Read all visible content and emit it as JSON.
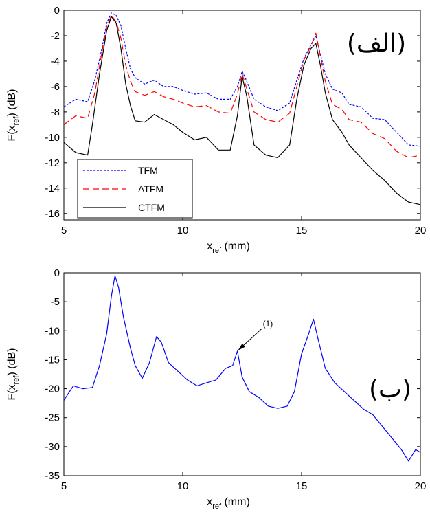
{
  "chart_data": [
    {
      "type": "line",
      "panel_label": "(الف)",
      "xlabel": "x_ref (mm)",
      "ylabel": "F(x_ref) (dB)",
      "xlim": [
        5,
        20
      ],
      "ylim": [
        -16.5,
        0
      ],
      "xticks": [
        5,
        10,
        15,
        20
      ],
      "yticks": [
        0,
        -2,
        -4,
        -6,
        -8,
        -10,
        -12,
        -14,
        -16
      ],
      "grid": false,
      "legend_position": "bottom-left",
      "series": [
        {
          "name": "TFM",
          "color": "#0000ff",
          "style": "dotted",
          "points": [
            [
              5,
              -7.6
            ],
            [
              5.5,
              -7.0
            ],
            [
              6,
              -7.2
            ],
            [
              6.3,
              -5.5
            ],
            [
              6.6,
              -3.0
            ],
            [
              6.8,
              -1.0
            ],
            [
              7.0,
              -0.2
            ],
            [
              7.2,
              -0.4
            ],
            [
              7.4,
              -1.2
            ],
            [
              7.6,
              -3.0
            ],
            [
              7.8,
              -4.6
            ],
            [
              8.0,
              -5.3
            ],
            [
              8.4,
              -5.8
            ],
            [
              8.8,
              -5.5
            ],
            [
              9.2,
              -6.0
            ],
            [
              9.6,
              -6.0
            ],
            [
              10.0,
              -6.3
            ],
            [
              10.5,
              -6.6
            ],
            [
              11.0,
              -6.5
            ],
            [
              11.5,
              -7.0
            ],
            [
              12.0,
              -7.0
            ],
            [
              12.3,
              -6.0
            ],
            [
              12.5,
              -4.8
            ],
            [
              12.7,
              -5.6
            ],
            [
              13.0,
              -7.0
            ],
            [
              13.5,
              -7.6
            ],
            [
              14.0,
              -7.9
            ],
            [
              14.5,
              -7.3
            ],
            [
              14.8,
              -5.5
            ],
            [
              15.1,
              -3.8
            ],
            [
              15.4,
              -2.7
            ],
            [
              15.6,
              -2.0
            ],
            [
              15.8,
              -3.5
            ],
            [
              16.0,
              -5.0
            ],
            [
              16.3,
              -6.2
            ],
            [
              16.7,
              -6.5
            ],
            [
              17.0,
              -7.4
            ],
            [
              17.5,
              -7.6
            ],
            [
              18.0,
              -8.5
            ],
            [
              18.5,
              -8.6
            ],
            [
              19.0,
              -9.6
            ],
            [
              19.5,
              -10.6
            ],
            [
              20.0,
              -10.7
            ]
          ]
        },
        {
          "name": "ATFM",
          "color": "#ff0000",
          "style": "dashed",
          "points": [
            [
              5,
              -9.0
            ],
            [
              5.5,
              -8.3
            ],
            [
              6,
              -8.5
            ],
            [
              6.3,
              -6.5
            ],
            [
              6.6,
              -3.3
            ],
            [
              6.8,
              -1.3
            ],
            [
              7.0,
              -0.4
            ],
            [
              7.2,
              -0.9
            ],
            [
              7.4,
              -2.2
            ],
            [
              7.6,
              -4.3
            ],
            [
              7.8,
              -5.6
            ],
            [
              8.0,
              -6.4
            ],
            [
              8.4,
              -6.7
            ],
            [
              8.8,
              -6.4
            ],
            [
              9.2,
              -6.8
            ],
            [
              9.6,
              -7.0
            ],
            [
              10.0,
              -7.3
            ],
            [
              10.5,
              -7.6
            ],
            [
              11.0,
              -7.5
            ],
            [
              11.5,
              -8.0
            ],
            [
              12.0,
              -8.1
            ],
            [
              12.3,
              -6.6
            ],
            [
              12.5,
              -5.0
            ],
            [
              12.7,
              -6.2
            ],
            [
              13.0,
              -8.0
            ],
            [
              13.5,
              -8.6
            ],
            [
              14.0,
              -8.8
            ],
            [
              14.5,
              -8.1
            ],
            [
              14.8,
              -6.0
            ],
            [
              15.1,
              -3.9
            ],
            [
              15.4,
              -2.8
            ],
            [
              15.6,
              -1.8
            ],
            [
              15.8,
              -3.7
            ],
            [
              16.0,
              -5.6
            ],
            [
              16.3,
              -7.4
            ],
            [
              16.7,
              -7.8
            ],
            [
              17.0,
              -8.6
            ],
            [
              17.5,
              -8.8
            ],
            [
              18.0,
              -9.7
            ],
            [
              18.5,
              -10.1
            ],
            [
              19.0,
              -11.1
            ],
            [
              19.5,
              -11.6
            ],
            [
              20.0,
              -11.4
            ]
          ]
        },
        {
          "name": "CTFM",
          "color": "#000000",
          "style": "solid",
          "points": [
            [
              5,
              -10.4
            ],
            [
              5.5,
              -11.2
            ],
            [
              6,
              -11.4
            ],
            [
              6.2,
              -9.0
            ],
            [
              6.5,
              -5.0
            ],
            [
              6.8,
              -1.6
            ],
            [
              7.0,
              -0.5
            ],
            [
              7.2,
              -1.0
            ],
            [
              7.4,
              -3.0
            ],
            [
              7.6,
              -5.8
            ],
            [
              7.8,
              -7.5
            ],
            [
              8.0,
              -8.7
            ],
            [
              8.4,
              -8.8
            ],
            [
              8.8,
              -8.2
            ],
            [
              9.2,
              -8.6
            ],
            [
              9.6,
              -9.0
            ],
            [
              10.0,
              -9.6
            ],
            [
              10.5,
              -10.2
            ],
            [
              11.0,
              -10.0
            ],
            [
              11.5,
              -11.0
            ],
            [
              12.0,
              -11.0
            ],
            [
              12.3,
              -8.3
            ],
            [
              12.5,
              -5.2
            ],
            [
              12.7,
              -6.8
            ],
            [
              13.0,
              -10.6
            ],
            [
              13.5,
              -11.4
            ],
            [
              14.0,
              -11.6
            ],
            [
              14.5,
              -10.6
            ],
            [
              14.8,
              -7.0
            ],
            [
              15.1,
              -4.3
            ],
            [
              15.4,
              -3.0
            ],
            [
              15.6,
              -2.6
            ],
            [
              15.8,
              -4.4
            ],
            [
              16.0,
              -6.5
            ],
            [
              16.3,
              -8.6
            ],
            [
              16.7,
              -9.6
            ],
            [
              17.0,
              -10.6
            ],
            [
              17.5,
              -11.6
            ],
            [
              18.0,
              -12.6
            ],
            [
              18.5,
              -13.4
            ],
            [
              19.0,
              -14.4
            ],
            [
              19.5,
              -15.1
            ],
            [
              20.0,
              -15.3
            ]
          ]
        }
      ]
    },
    {
      "type": "line",
      "panel_label": "(ب)",
      "xlabel": "x_ref (mm)",
      "ylabel": "F(x_ref) (dB)",
      "xlim": [
        5,
        20
      ],
      "ylim": [
        -35,
        0
      ],
      "xticks": [
        5,
        10,
        15,
        20
      ],
      "yticks": [
        0,
        -5,
        -10,
        -15,
        -20,
        -25,
        -30,
        -35
      ],
      "grid": false,
      "annotation": {
        "text": "(1)",
        "x": 12.3,
        "y": -13.5
      },
      "series": [
        {
          "color": "#0000ff",
          "style": "solid",
          "points": [
            [
              5,
              -22.0
            ],
            [
              5.4,
              -19.5
            ],
            [
              5.8,
              -20.0
            ],
            [
              6.2,
              -19.8
            ],
            [
              6.5,
              -16.0
            ],
            [
              6.8,
              -10.5
            ],
            [
              7.0,
              -4.0
            ],
            [
              7.15,
              -0.5
            ],
            [
              7.3,
              -2.5
            ],
            [
              7.5,
              -7.5
            ],
            [
              7.8,
              -13.0
            ],
            [
              8.0,
              -16.0
            ],
            [
              8.3,
              -18.2
            ],
            [
              8.6,
              -15.5
            ],
            [
              8.9,
              -11.0
            ],
            [
              9.1,
              -12.0
            ],
            [
              9.4,
              -15.5
            ],
            [
              9.8,
              -17.0
            ],
            [
              10.2,
              -18.5
            ],
            [
              10.6,
              -19.5
            ],
            [
              11.0,
              -19.0
            ],
            [
              11.4,
              -18.5
            ],
            [
              11.8,
              -16.5
            ],
            [
              12.1,
              -16.0
            ],
            [
              12.3,
              -13.5
            ],
            [
              12.5,
              -18.0
            ],
            [
              12.8,
              -20.5
            ],
            [
              13.2,
              -21.5
            ],
            [
              13.6,
              -23.0
            ],
            [
              14.0,
              -23.4
            ],
            [
              14.4,
              -23.0
            ],
            [
              14.7,
              -20.5
            ],
            [
              15.0,
              -14.0
            ],
            [
              15.3,
              -10.5
            ],
            [
              15.5,
              -8.0
            ],
            [
              15.7,
              -11.5
            ],
            [
              16.0,
              -16.5
            ],
            [
              16.4,
              -19.0
            ],
            [
              16.8,
              -20.5
            ],
            [
              17.2,
              -22.0
            ],
            [
              17.6,
              -23.5
            ],
            [
              18.0,
              -24.5
            ],
            [
              18.4,
              -26.5
            ],
            [
              18.8,
              -28.5
            ],
            [
              19.2,
              -30.5
            ],
            [
              19.5,
              -32.5
            ],
            [
              19.8,
              -30.5
            ],
            [
              20.0,
              -31.0
            ]
          ]
        }
      ]
    }
  ]
}
